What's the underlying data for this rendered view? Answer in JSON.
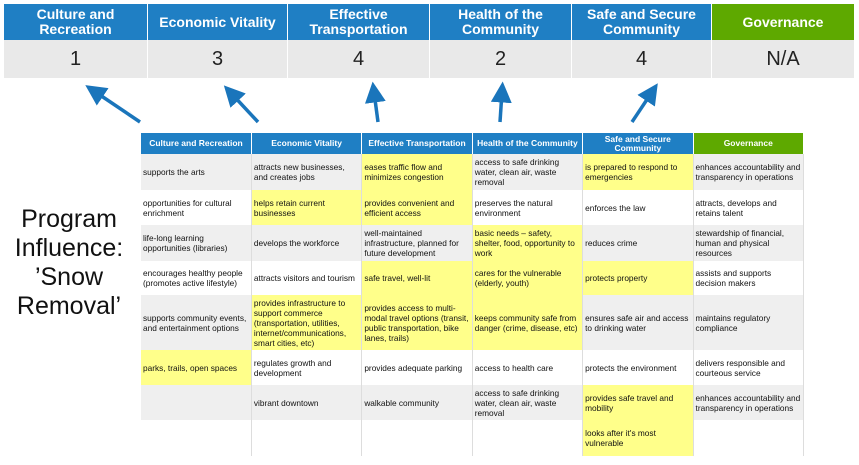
{
  "colors": {
    "header_blue": "#1f7fc4",
    "header_green": "#5ea900",
    "highlight": "#ffff8a",
    "arrow": "#1a75bb"
  },
  "categories": [
    {
      "label": "Culture and Recreation",
      "score": "1",
      "table_label": "Culture and Recreation",
      "color": "#1f7fc4"
    },
    {
      "label": "Economic Vitality",
      "score": "3",
      "table_label": "Economic Vitality",
      "color": "#1f7fc4"
    },
    {
      "label": "Effective Transportation",
      "score": "4",
      "table_label": "Effective Transportation",
      "color": "#1f7fc4"
    },
    {
      "label": "Health of the Community",
      "score": "2",
      "table_label": "Health of the Community",
      "color": "#1f7fc4"
    },
    {
      "label": "Safe and Secure Community",
      "score": "4",
      "table_label": "Safe and Secure Community",
      "color": "#1f7fc4"
    },
    {
      "label": "Governance",
      "score": "N/A",
      "table_label": "Governance",
      "color": "#5ea900"
    }
  ],
  "program_label": "Program Influence: ’Snow Removal’",
  "rows": [
    [
      {
        "t": "supports the arts"
      },
      {
        "t": "attracts new businesses, and creates jobs"
      },
      {
        "t": "eases traffic flow and minimizes congestion",
        "h": true
      },
      {
        "t": "access to safe drinking water, clean air, waste removal"
      },
      {
        "t": "is prepared to respond to emergencies",
        "h": true
      },
      {
        "t": "enhances accountability and transparency in operations"
      }
    ],
    [
      {
        "t": "opportunities for cultural enrichment"
      },
      {
        "t": "helps retain current businesses",
        "h": true
      },
      {
        "t": "provides convenient and efficient access",
        "h": true
      },
      {
        "t": "preserves the natural environment"
      },
      {
        "t": "enforces the law"
      },
      {
        "t": "attracts, develops and retains talent"
      }
    ],
    [
      {
        "t": "life-long learning opportunities (libraries)"
      },
      {
        "t": "develops the workforce"
      },
      {
        "t": "well-maintained infrastructure, planned for future development"
      },
      {
        "t": "basic needs – safety, shelter, food, opportunity to work",
        "h": true
      },
      {
        "t": "reduces crime"
      },
      {
        "t": "stewardship of financial, human and physical resources"
      }
    ],
    [
      {
        "t": "encourages healthy people (promotes active lifestyle)"
      },
      {
        "t": "attracts visitors and tourism"
      },
      {
        "t": "safe travel, well-lit",
        "h": true
      },
      {
        "t": "cares for the vulnerable (elderly, youth)",
        "h": true
      },
      {
        "t": "protects property",
        "h": true
      },
      {
        "t": "assists and supports decision makers"
      }
    ],
    [
      {
        "t": "supports community events, and entertainment options"
      },
      {
        "t": "provides infrastructure to support commerce (transportation, utilities, internet/communications, smart cities, etc)",
        "h": true
      },
      {
        "t": "provides access to multi-modal travel options (transit, public transportation, bike lanes, trails)",
        "h": true
      },
      {
        "t": "keeps community safe from danger (crime, disease, etc)",
        "h": true
      },
      {
        "t": "ensures safe air and access to drinking water"
      },
      {
        "t": "maintains regulatory compliance"
      }
    ],
    [
      {
        "t": "parks, trails, open spaces",
        "h": true
      },
      {
        "t": "regulates growth and development"
      },
      {
        "t": "provides adequate parking"
      },
      {
        "t": "access to health care"
      },
      {
        "t": "protects the environment"
      },
      {
        "t": "delivers responsible and courteous service"
      }
    ],
    [
      {
        "t": ""
      },
      {
        "t": "vibrant downtown"
      },
      {
        "t": "walkable community"
      },
      {
        "t": "access to safe drinking water, clean air, waste removal"
      },
      {
        "t": "provides safe travel and mobility",
        "h": true
      },
      {
        "t": "enhances accountability and transparency in operations"
      }
    ],
    [
      {
        "t": ""
      },
      {
        "t": ""
      },
      {
        "t": ""
      },
      {
        "t": ""
      },
      {
        "t": "looks after it's most vulnerable",
        "h": true
      },
      {
        "t": ""
      }
    ]
  ]
}
